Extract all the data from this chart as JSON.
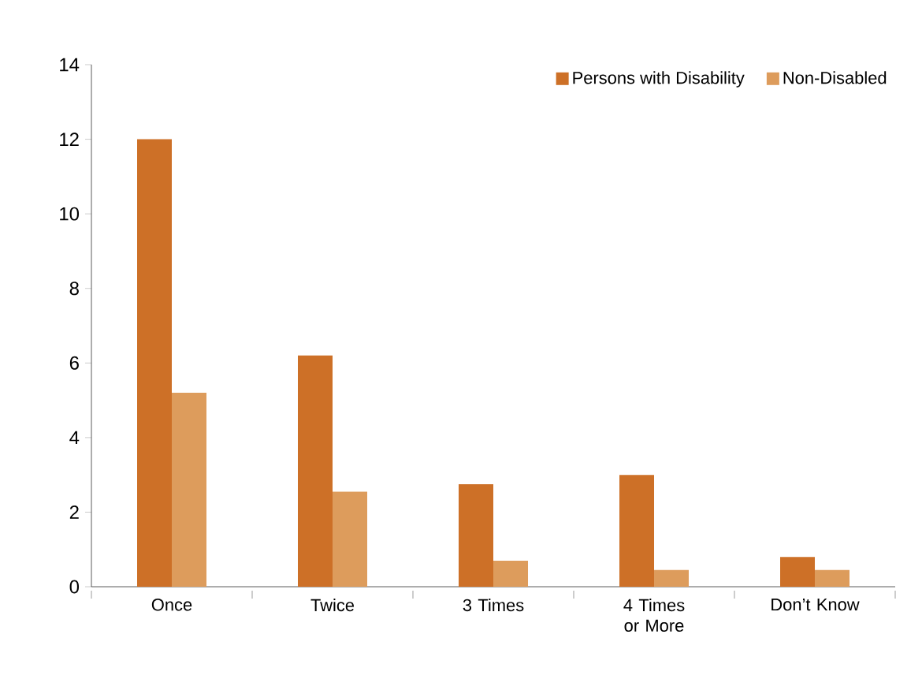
{
  "chart_data": {
    "type": "bar",
    "categories": [
      "Once",
      "Twice",
      "3 Times",
      "4 Times or More",
      "Don’t Know"
    ],
    "series": [
      {
        "name": "Persons with Disability",
        "color": "#cd7027",
        "values": [
          12,
          6.2,
          2.75,
          3.0,
          0.8
        ]
      },
      {
        "name": "Non-Disabled",
        "color": "#dd9c5c",
        "values": [
          5.2,
          2.55,
          0.7,
          0.45,
          0.45
        ]
      }
    ],
    "ylim": [
      0,
      14
    ],
    "yticks": [
      0,
      2,
      4,
      6,
      8,
      10,
      12,
      14
    ],
    "grid": false,
    "legend": "top right"
  }
}
